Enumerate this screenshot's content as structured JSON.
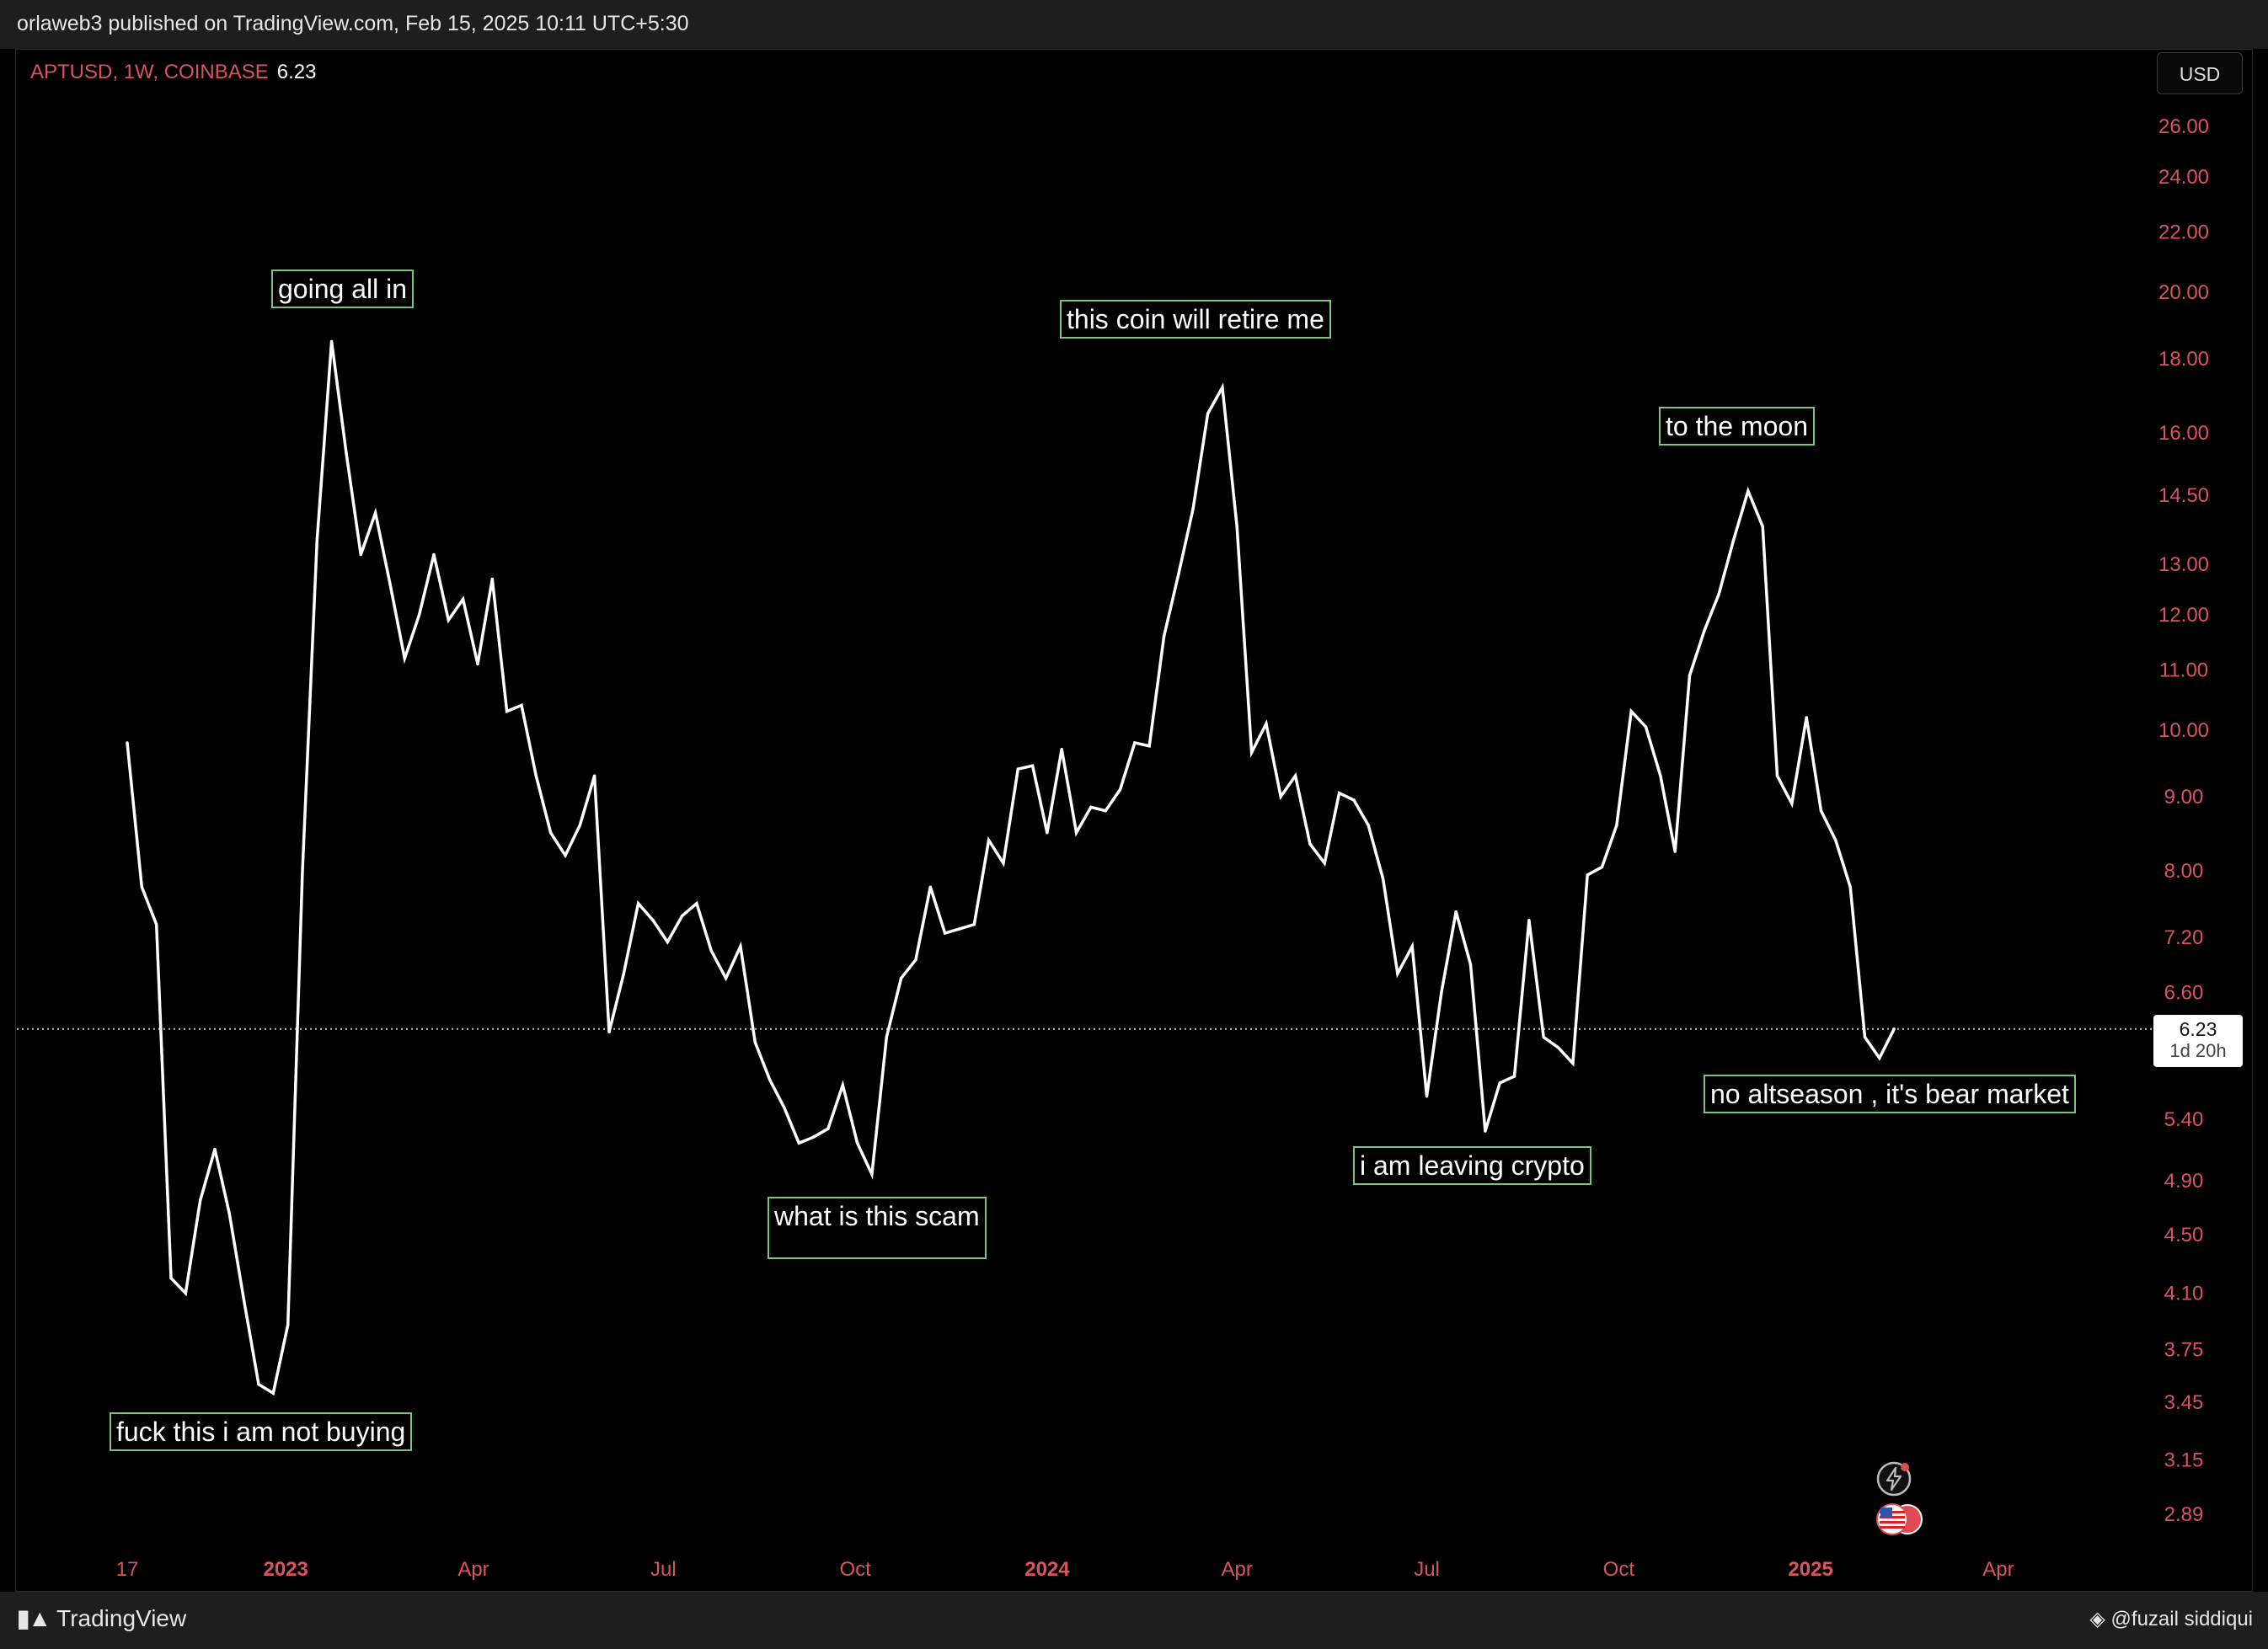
{
  "header": {
    "published": "orlaweb3 published on TradingView.com, Feb 15, 2025 10:11 UTC+5:30"
  },
  "symbol": {
    "label": "APTUSD, 1W, COINBASE",
    "last_price": "6.23"
  },
  "currency": "USD",
  "price_badge": {
    "price": "6.23",
    "timer": "1d 20h"
  },
  "footer": {
    "brand": "TradingView",
    "watermark": "@fuzail siddiqui"
  },
  "annotations": {
    "going_all_in": "going all in",
    "retire": "this coin will retire me",
    "moon": "to the moon",
    "not_buying": "fuck this i am not buying",
    "scam": "what is this scam",
    "leaving": "i am leaving crypto",
    "bear": "no altseason , it's bear market"
  },
  "colors": {
    "background": "#000000",
    "line": "#ffffff",
    "axis_text": "#d9545f",
    "annotation_border": "#7bc47f",
    "price_line": "#bbbbbb"
  },
  "icons": [
    "flash-icon",
    "us-flag-icon",
    "tradingview-logo-icon",
    "binance-square-icon"
  ],
  "chart_data": {
    "type": "line",
    "title": "APTUSD, 1W, COINBASE",
    "scale": "log",
    "ylim": [
      2.7,
      28
    ],
    "y_ticks": [
      26.0,
      24.0,
      22.0,
      20.0,
      18.0,
      16.0,
      14.5,
      13.0,
      12.0,
      11.0,
      10.0,
      9.0,
      8.0,
      7.2,
      6.6,
      5.4,
      4.9,
      4.5,
      4.1,
      3.75,
      3.45,
      3.15,
      2.89
    ],
    "y_tick_labels": [
      "26.00",
      "24.00",
      "22.00",
      "20.00",
      "18.00",
      "16.00",
      "14.50",
      "13.00",
      "12.00",
      "11.00",
      "10.00",
      "9.00",
      "8.00",
      "7.20",
      "6.60",
      "5.40",
      "4.90",
      "4.50",
      "4.10",
      "3.75",
      "3.45",
      "3.15",
      "2.89"
    ],
    "x_ticks": [
      {
        "label": "17",
        "date": "2022-10-17",
        "bold": false
      },
      {
        "label": "2023",
        "date": "2023-01-01",
        "bold": true
      },
      {
        "label": "Apr",
        "date": "2023-04-01",
        "bold": false
      },
      {
        "label": "Jul",
        "date": "2023-07-01",
        "bold": false
      },
      {
        "label": "Oct",
        "date": "2023-10-01",
        "bold": false
      },
      {
        "label": "2024",
        "date": "2024-01-01",
        "bold": true
      },
      {
        "label": "Apr",
        "date": "2024-04-01",
        "bold": false
      },
      {
        "label": "Jul",
        "date": "2024-07-01",
        "bold": false
      },
      {
        "label": "Oct",
        "date": "2024-10-01",
        "bold": false
      },
      {
        "label": "2025",
        "date": "2025-01-01",
        "bold": true
      },
      {
        "label": "Apr",
        "date": "2025-04-01",
        "bold": false
      }
    ],
    "current_price": 6.23,
    "grid": false,
    "series": [
      {
        "values": [
          [
            "2022-10-17",
            9.8
          ],
          [
            "2022-10-24",
            7.8
          ],
          [
            "2022-10-31",
            7.35
          ],
          [
            "2022-11-07",
            4.2
          ],
          [
            "2022-11-14",
            4.1
          ],
          [
            "2022-11-21",
            4.75
          ],
          [
            "2022-11-28",
            5.15
          ],
          [
            "2022-12-05",
            4.65
          ],
          [
            "2022-12-12",
            4.05
          ],
          [
            "2022-12-19",
            3.55
          ],
          [
            "2022-12-26",
            3.5
          ],
          [
            "2023-01-02",
            3.9
          ],
          [
            "2023-01-09",
            8.0
          ],
          [
            "2023-01-16",
            13.5
          ],
          [
            "2023-01-23",
            18.5
          ],
          [
            "2023-01-30",
            15.5
          ],
          [
            "2023-02-06",
            13.2
          ],
          [
            "2023-02-13",
            14.1
          ],
          [
            "2023-02-20",
            12.6
          ],
          [
            "2023-02-27",
            11.2
          ],
          [
            "2023-03-06",
            12.0
          ],
          [
            "2023-03-13",
            13.2
          ],
          [
            "2023-03-20",
            11.9
          ],
          [
            "2023-03-27",
            12.3
          ],
          [
            "2023-04-03",
            11.1
          ],
          [
            "2023-04-10",
            12.7
          ],
          [
            "2023-04-17",
            10.3
          ],
          [
            "2023-04-24",
            10.4
          ],
          [
            "2023-05-01",
            9.3
          ],
          [
            "2023-05-08",
            8.5
          ],
          [
            "2023-05-15",
            8.2
          ],
          [
            "2023-05-22",
            8.6
          ],
          [
            "2023-05-29",
            9.3
          ],
          [
            "2023-06-05",
            6.2
          ],
          [
            "2023-06-12",
            6.8
          ],
          [
            "2023-06-19",
            7.6
          ],
          [
            "2023-06-26",
            7.4
          ],
          [
            "2023-07-03",
            7.15
          ],
          [
            "2023-07-10",
            7.45
          ],
          [
            "2023-07-17",
            7.6
          ],
          [
            "2023-07-24",
            7.05
          ],
          [
            "2023-07-31",
            6.75
          ],
          [
            "2023-08-07",
            7.1
          ],
          [
            "2023-08-14",
            6.1
          ],
          [
            "2023-08-21",
            5.75
          ],
          [
            "2023-08-28",
            5.5
          ],
          [
            "2023-09-04",
            5.2
          ],
          [
            "2023-09-11",
            5.25
          ],
          [
            "2023-09-18",
            5.32
          ],
          [
            "2023-09-25",
            5.7
          ],
          [
            "2023-10-02",
            5.2
          ],
          [
            "2023-10-09",
            4.95
          ],
          [
            "2023-10-16",
            6.15
          ],
          [
            "2023-10-23",
            6.75
          ],
          [
            "2023-10-30",
            6.95
          ],
          [
            "2023-11-06",
            7.8
          ],
          [
            "2023-11-13",
            7.25
          ],
          [
            "2023-11-20",
            7.3
          ],
          [
            "2023-11-27",
            7.35
          ],
          [
            "2023-12-04",
            8.4
          ],
          [
            "2023-12-11",
            8.1
          ],
          [
            "2023-12-18",
            9.4
          ],
          [
            "2023-12-25",
            9.45
          ],
          [
            "2024-01-01",
            8.5
          ],
          [
            "2024-01-08",
            9.7
          ],
          [
            "2024-01-15",
            8.5
          ],
          [
            "2024-01-22",
            8.85
          ],
          [
            "2024-01-29",
            8.8
          ],
          [
            "2024-02-05",
            9.1
          ],
          [
            "2024-02-12",
            9.8
          ],
          [
            "2024-02-19",
            9.75
          ],
          [
            "2024-02-26",
            11.6
          ],
          [
            "2024-03-04",
            12.8
          ],
          [
            "2024-03-11",
            14.2
          ],
          [
            "2024-03-18",
            16.5
          ],
          [
            "2024-03-25",
            17.2
          ],
          [
            "2024-04-01",
            13.8
          ],
          [
            "2024-04-08",
            9.65
          ],
          [
            "2024-04-15",
            10.1
          ],
          [
            "2024-04-22",
            9.0
          ],
          [
            "2024-04-29",
            9.3
          ],
          [
            "2024-05-06",
            8.35
          ],
          [
            "2024-05-13",
            8.1
          ],
          [
            "2024-05-20",
            9.05
          ],
          [
            "2024-05-27",
            8.95
          ],
          [
            "2024-06-03",
            8.6
          ],
          [
            "2024-06-10",
            7.9
          ],
          [
            "2024-06-17",
            6.8
          ],
          [
            "2024-06-24",
            7.1
          ],
          [
            "2024-07-01",
            5.6
          ],
          [
            "2024-07-08",
            6.6
          ],
          [
            "2024-07-15",
            7.5
          ],
          [
            "2024-07-22",
            6.9
          ],
          [
            "2024-07-29",
            5.3
          ],
          [
            "2024-08-05",
            5.72
          ],
          [
            "2024-08-12",
            5.78
          ],
          [
            "2024-08-19",
            7.4
          ],
          [
            "2024-08-26",
            6.15
          ],
          [
            "2024-09-02",
            6.05
          ],
          [
            "2024-09-09",
            5.9
          ],
          [
            "2024-09-16",
            7.95
          ],
          [
            "2024-09-23",
            8.05
          ],
          [
            "2024-09-30",
            8.6
          ],
          [
            "2024-10-07",
            10.3
          ],
          [
            "2024-10-14",
            10.05
          ],
          [
            "2024-10-21",
            9.3
          ],
          [
            "2024-10-28",
            8.25
          ],
          [
            "2024-11-04",
            10.9
          ],
          [
            "2024-11-11",
            11.7
          ],
          [
            "2024-11-18",
            12.4
          ],
          [
            "2024-11-25",
            13.5
          ],
          [
            "2024-12-02",
            14.6
          ],
          [
            "2024-12-09",
            13.8
          ],
          [
            "2024-12-16",
            9.3
          ],
          [
            "2024-12-23",
            8.9
          ],
          [
            "2024-12-30",
            10.2
          ],
          [
            "2025-01-06",
            8.8
          ],
          [
            "2025-01-13",
            8.4
          ],
          [
            "2025-01-20",
            7.8
          ],
          [
            "2025-01-27",
            6.15
          ],
          [
            "2025-02-03",
            5.95
          ],
          [
            "2025-02-10",
            6.23
          ]
        ]
      }
    ]
  }
}
